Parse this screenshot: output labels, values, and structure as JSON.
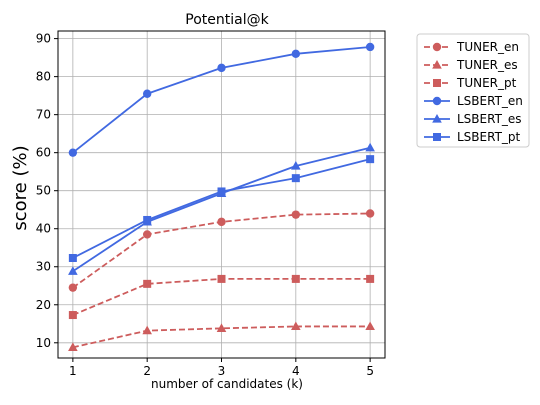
{
  "chart_data": {
    "type": "line",
    "title": "Potential@k",
    "xlabel": "number of candidates (k)",
    "ylabel": "score (%)",
    "x": [
      1,
      2,
      3,
      4,
      5
    ],
    "xlim": [
      0.8,
      5.2
    ],
    "ylim": [
      6,
      92
    ],
    "xticks": [
      1,
      2,
      3,
      4,
      5
    ],
    "yticks": [
      10,
      20,
      30,
      40,
      50,
      60,
      70,
      80,
      90
    ],
    "grid": true,
    "legend_position": "outside-top-right",
    "series": [
      {
        "name": "TUNER_en",
        "values": [
          24.5,
          38.5,
          41.8,
          43.7,
          44.0
        ],
        "color": "#cd5c5c",
        "marker": "circle",
        "dashed": true
      },
      {
        "name": "TUNER_es",
        "values": [
          8.8,
          13.2,
          13.8,
          14.3,
          14.3
        ],
        "color": "#cd5c5c",
        "marker": "triangle",
        "dashed": true
      },
      {
        "name": "TUNER_pt",
        "values": [
          17.3,
          25.5,
          26.8,
          26.8,
          26.8
        ],
        "color": "#cd5c5c",
        "marker": "square",
        "dashed": true
      },
      {
        "name": "LSBERT_en",
        "values": [
          60.0,
          75.5,
          82.3,
          86.0,
          87.8
        ],
        "color": "#4169e1",
        "marker": "circle",
        "dashed": false
      },
      {
        "name": "LSBERT_es",
        "values": [
          28.8,
          41.8,
          49.3,
          56.5,
          61.3
        ],
        "color": "#4169e1",
        "marker": "triangle",
        "dashed": false
      },
      {
        "name": "LSBERT_pt",
        "values": [
          32.3,
          42.3,
          49.8,
          53.3,
          58.3
        ],
        "color": "#4169e1",
        "marker": "square",
        "dashed": false
      }
    ]
  }
}
